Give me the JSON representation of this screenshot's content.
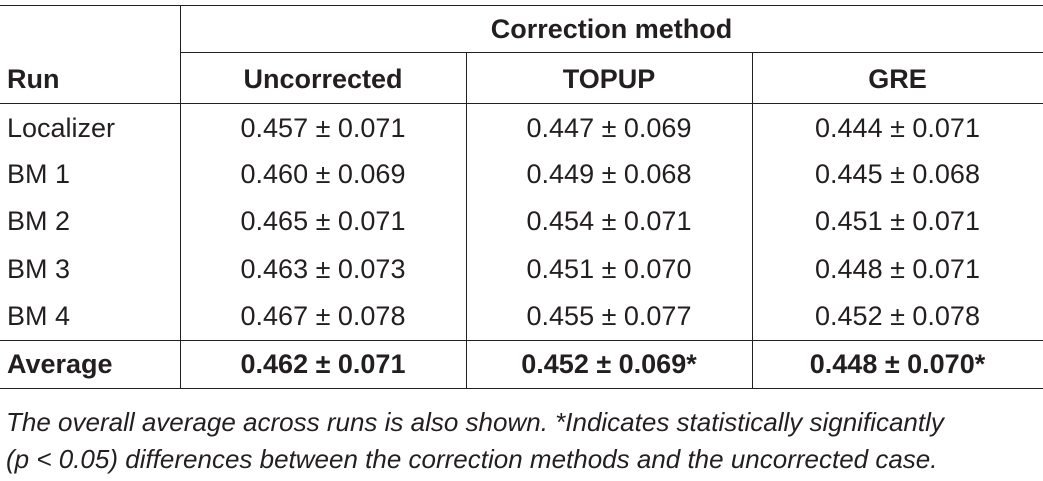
{
  "table": {
    "group_header": "Correction method",
    "columns": [
      "Run",
      "Uncorrected",
      "TOPUP",
      "GRE"
    ],
    "rows": [
      {
        "run": "Localizer",
        "uncorrected": "0.457 ± 0.071",
        "topup": "0.447 ± 0.069",
        "gre": "0.444 ± 0.071"
      },
      {
        "run": "BM 1",
        "uncorrected": "0.460 ± 0.069",
        "topup": "0.449 ± 0.068",
        "gre": "0.445 ± 0.068"
      },
      {
        "run": "BM 2",
        "uncorrected": "0.465 ± 0.071",
        "topup": "0.454 ± 0.071",
        "gre": "0.451 ± 0.071"
      },
      {
        "run": "BM 3",
        "uncorrected": "0.463 ± 0.073",
        "topup": "0.451 ± 0.070",
        "gre": "0.448 ± 0.071"
      },
      {
        "run": "BM 4",
        "uncorrected": "0.467 ± 0.078",
        "topup": "0.455 ± 0.077",
        "gre": "0.452 ± 0.078"
      }
    ],
    "average": {
      "run": "Average",
      "uncorrected": "0.462 ± 0.071",
      "topup": "0.452 ± 0.069*",
      "gre": "0.448 ± 0.070*"
    }
  },
  "caption": {
    "line1": "The overall average across runs is also shown. *Indicates statistically significantly",
    "line2": "(p < 0.05) differences between the correction methods and the uncorrected case."
  }
}
